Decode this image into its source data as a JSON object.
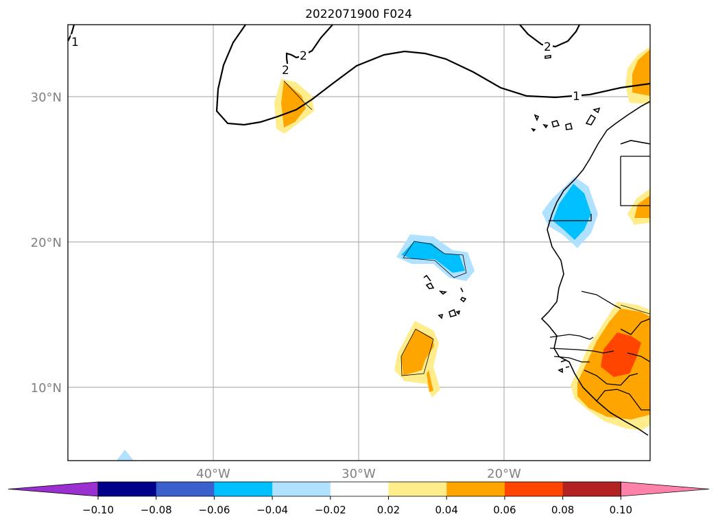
{
  "title": "2022071900 F024",
  "map": {
    "lat_labels": [
      "30°N",
      "20°N",
      "10°N"
    ],
    "lon_labels": [
      "40°W",
      "30°W",
      "20°W"
    ],
    "contour_labels": [
      "1",
      "2",
      "2",
      "2",
      "1"
    ]
  },
  "colorbar": {
    "colors": [
      "#9b30d0",
      "#00008b",
      "#3a5fcd",
      "#00bfff",
      "#b0e2ff",
      "#ffffff",
      "#ffec8b",
      "#ffa500",
      "#ff4500",
      "#b22222",
      "#ff82ab"
    ],
    "tick_labels": [
      "−0.10",
      "−0.08",
      "−0.06",
      "−0.04",
      "−0.02",
      "0.02",
      "0.04",
      "0.06",
      "0.08",
      "0.10"
    ]
  }
}
